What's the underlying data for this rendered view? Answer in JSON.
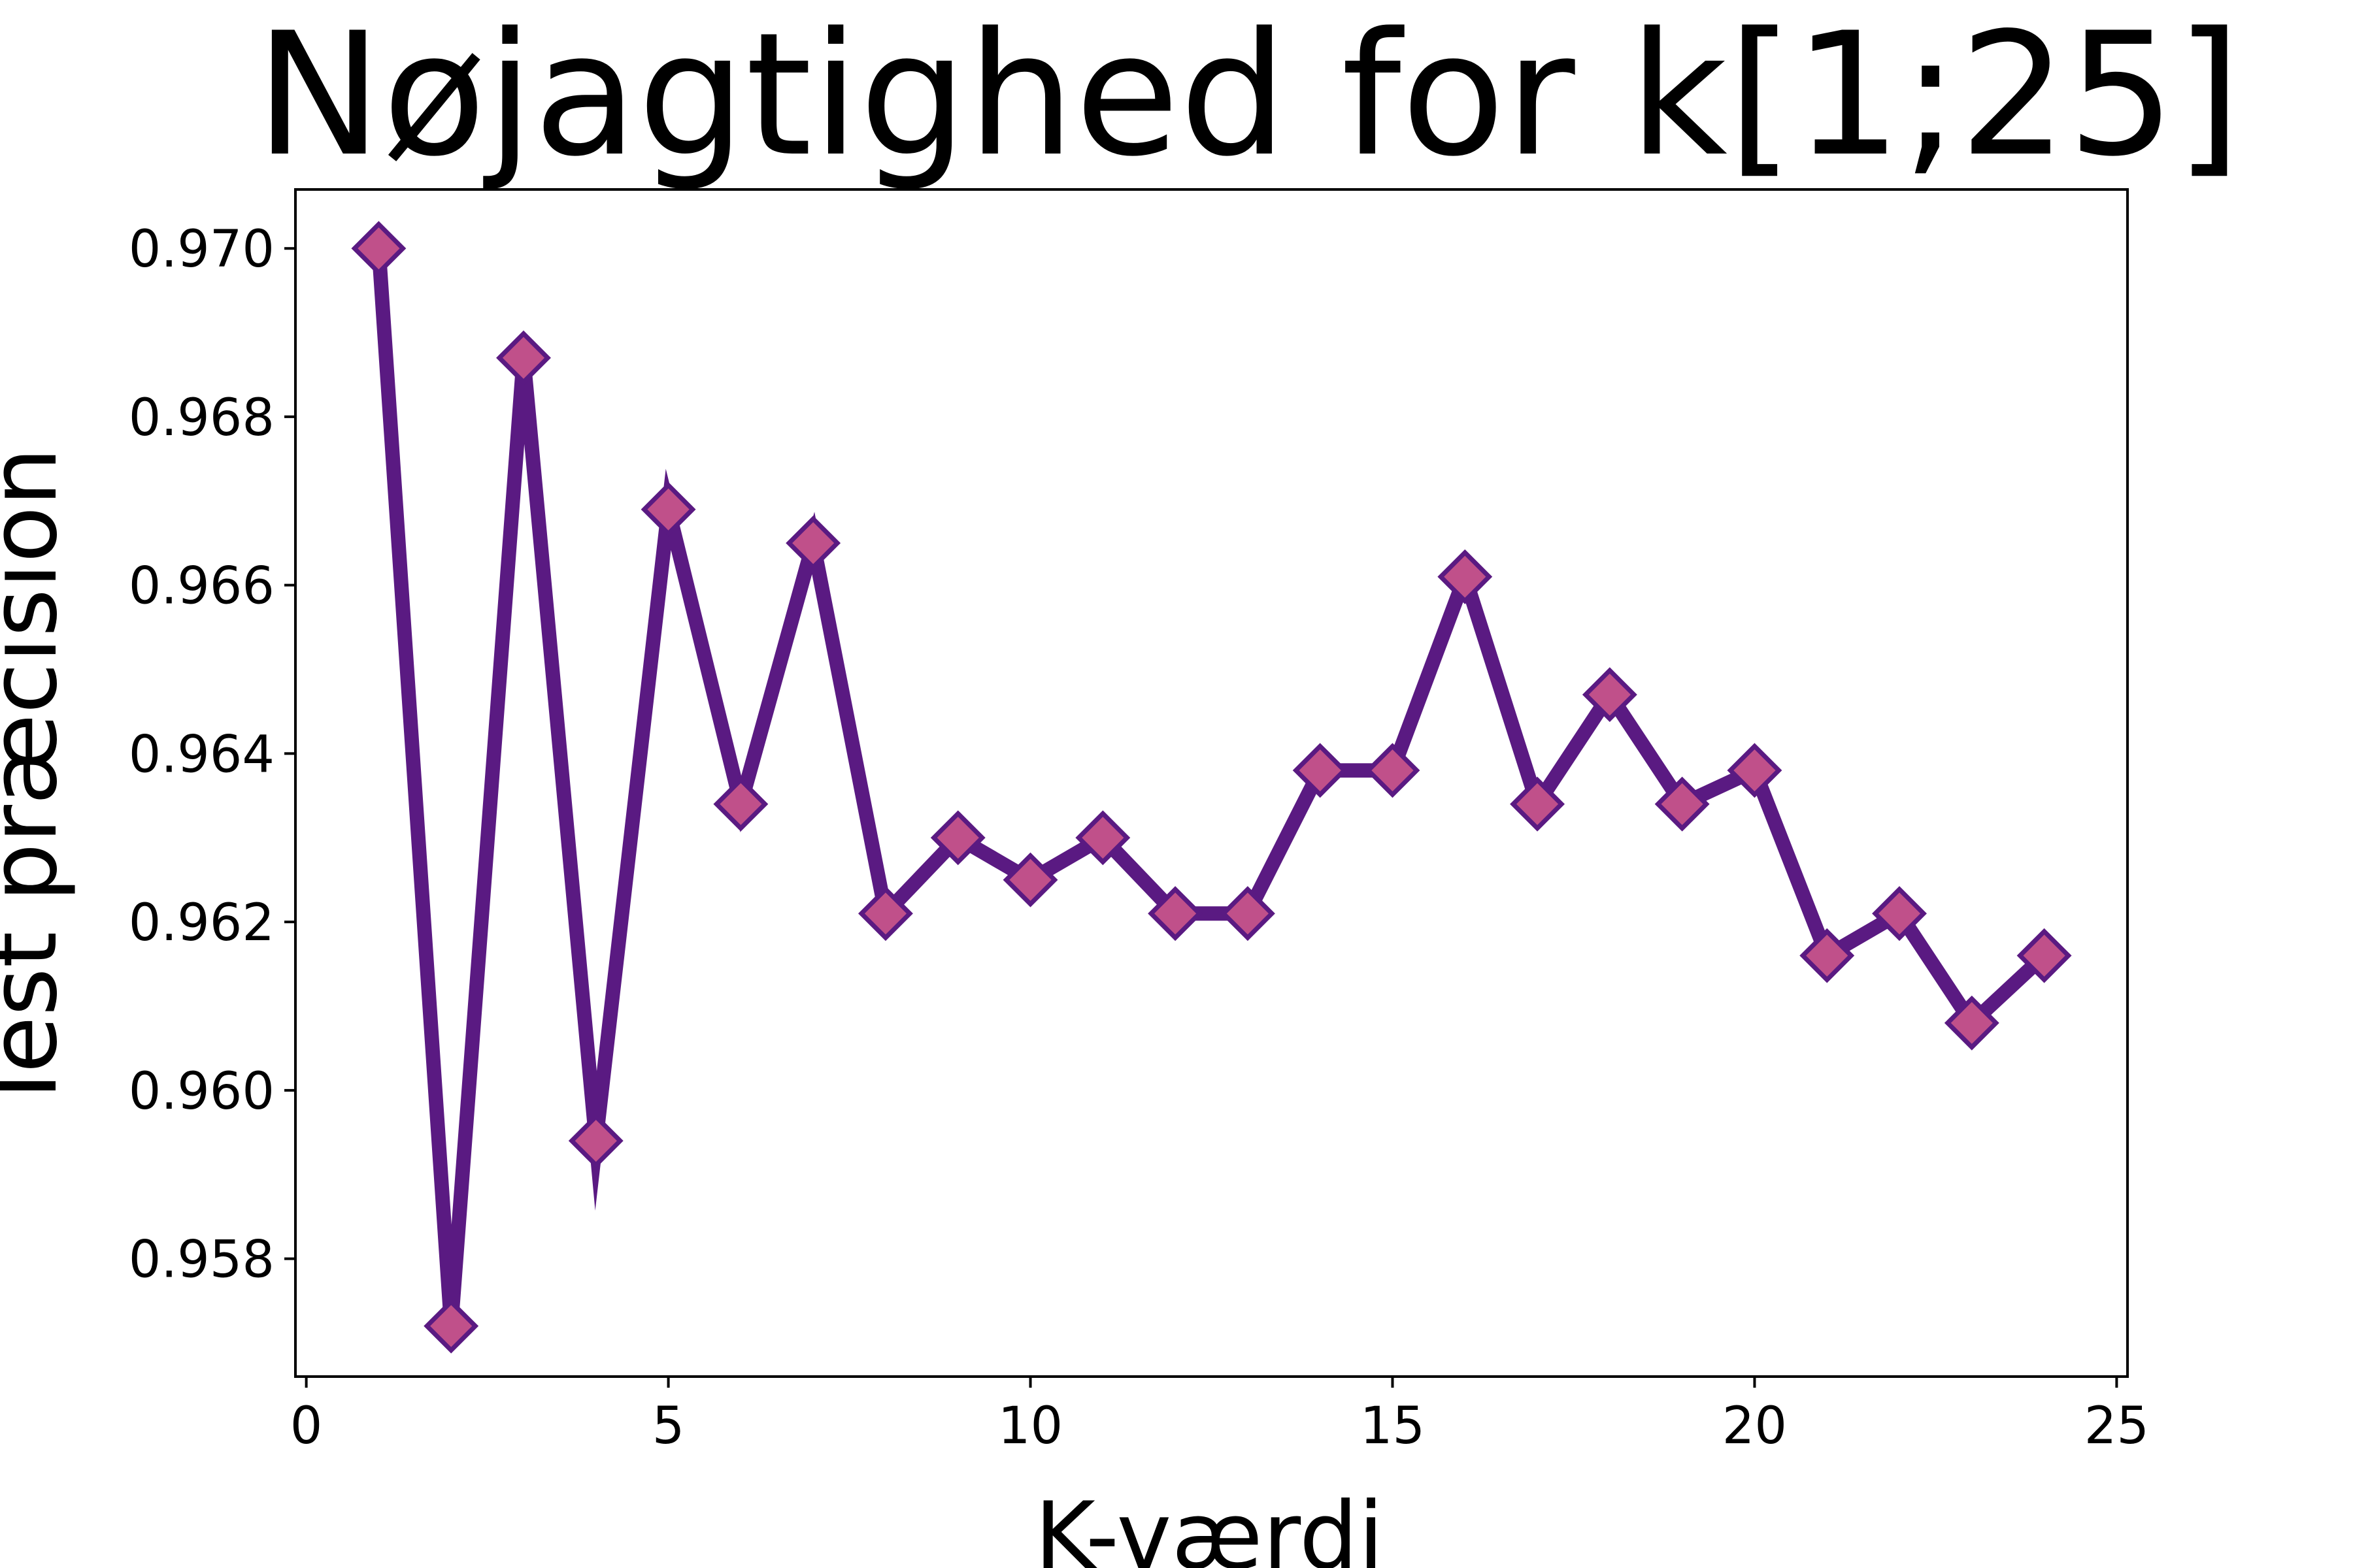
{
  "chart_data": {
    "type": "line",
    "title": "Nøjagtighed for k[1;25]",
    "xlabel": "K-værdi",
    "ylabel": "Test præcision",
    "xlim": [
      -0.15,
      25.15
    ],
    "ylim": [
      0.9566,
      0.9707
    ],
    "xticks": [
      0,
      5,
      10,
      15,
      20,
      25
    ],
    "xtick_labels": [
      "0",
      "5",
      "10",
      "15",
      "20",
      "25"
    ],
    "yticks": [
      0.958,
      0.96,
      0.962,
      0.964,
      0.966,
      0.968,
      0.97
    ],
    "ytick_labels": [
      "0.958",
      "0.960",
      "0.962",
      "0.964",
      "0.966",
      "0.968",
      "0.970"
    ],
    "grid": false,
    "line_color": "#5a1a82",
    "marker": "diamond",
    "marker_face_color": "#c0508a",
    "marker_edge_color": "#5a1a82",
    "series": [
      {
        "x": [
          1,
          2,
          3,
          4,
          5,
          6,
          7,
          8,
          9,
          10,
          11,
          12,
          13,
          14,
          15,
          16,
          17,
          18,
          19,
          20,
          21,
          22,
          23,
          24
        ],
        "values": [
          0.97,
          0.9572,
          0.9687,
          0.9594,
          0.9669,
          0.9634,
          0.9665,
          0.9621,
          0.963,
          0.9625,
          0.963,
          0.9621,
          0.9621,
          0.9638,
          0.9638,
          0.9661,
          0.9634,
          0.9647,
          0.9634,
          0.9638,
          0.9616,
          0.9621,
          0.9608,
          0.9616
        ]
      }
    ]
  }
}
